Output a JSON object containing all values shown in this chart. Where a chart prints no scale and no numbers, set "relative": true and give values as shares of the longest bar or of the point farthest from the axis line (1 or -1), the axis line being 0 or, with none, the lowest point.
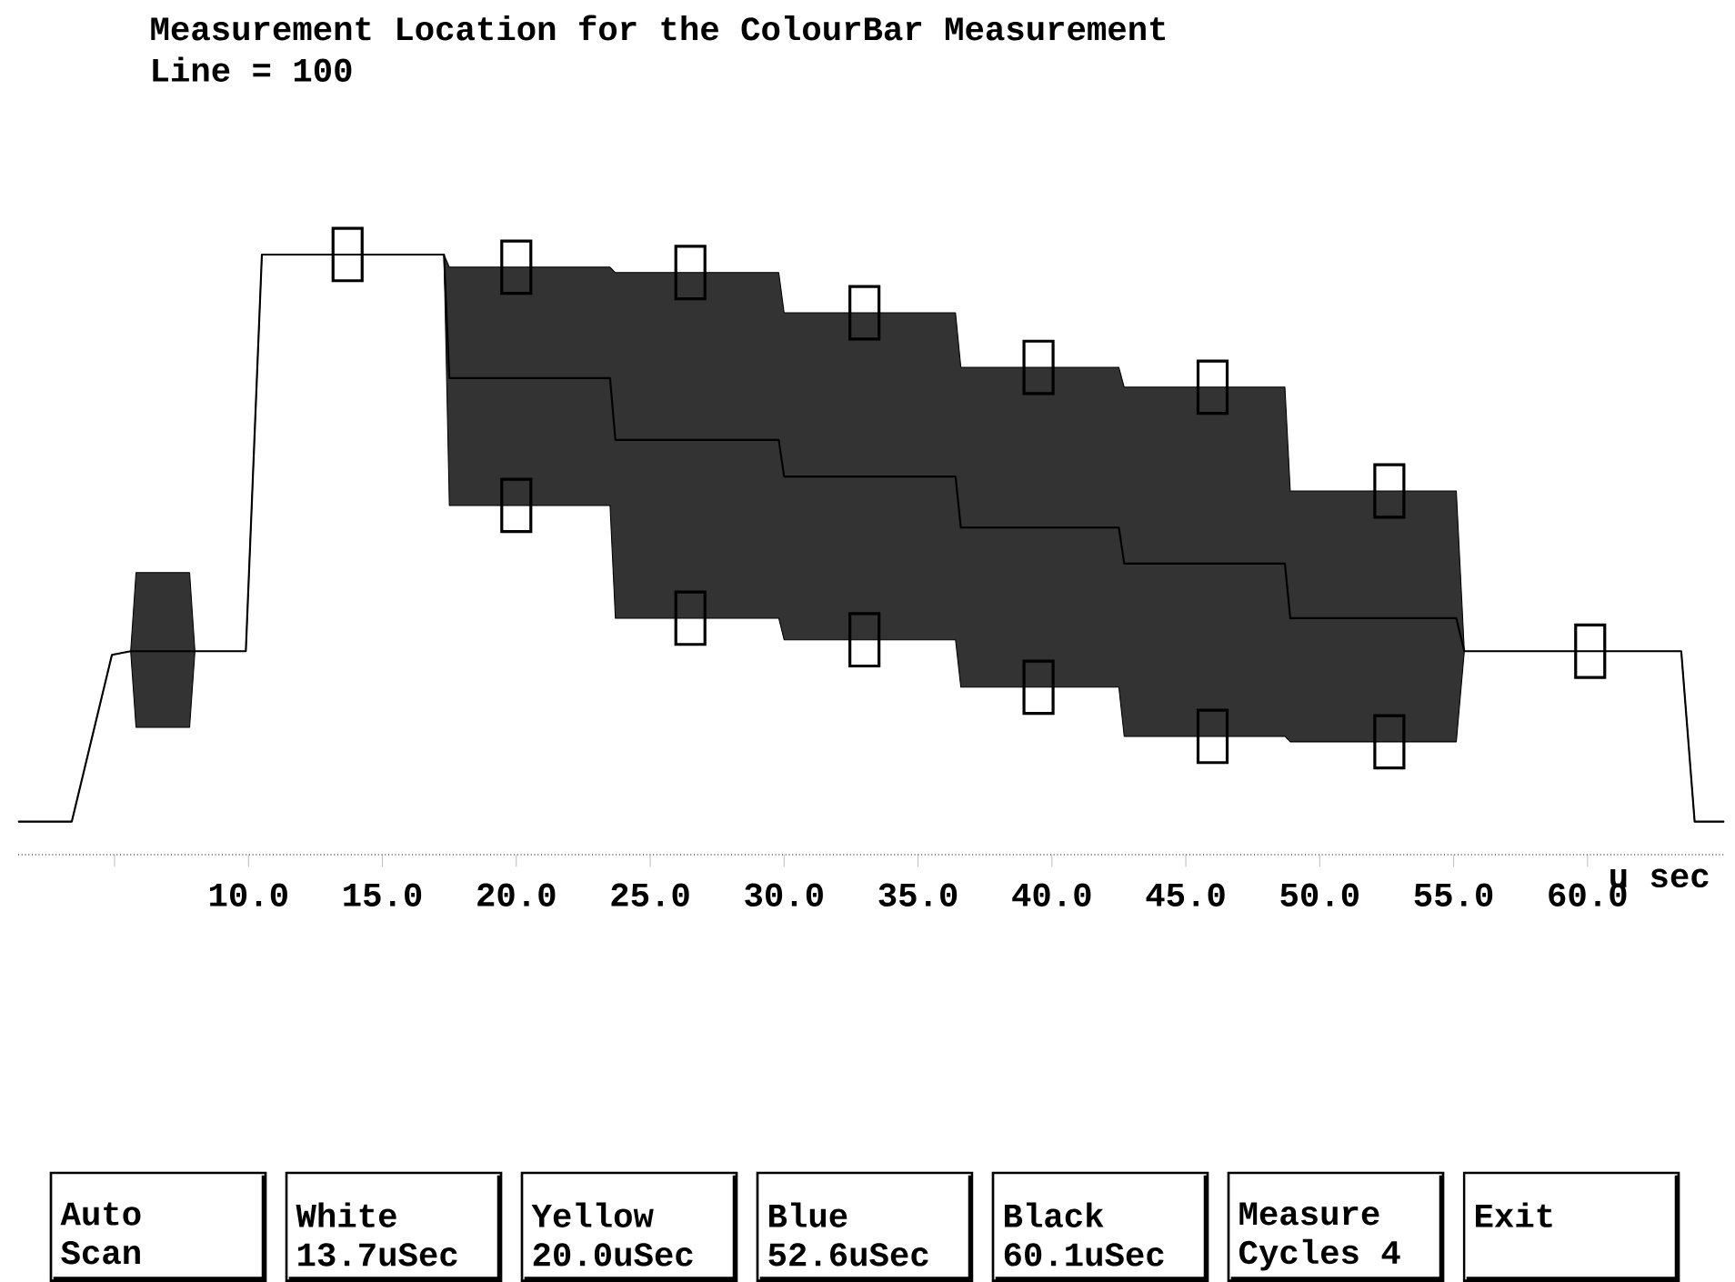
{
  "chart_data": {
    "type": "line",
    "title": "Measurement Location for the ColourBar Measurement",
    "subtitle": "Line = 100",
    "xlabel": "u sec",
    "relative": true,
    "xlim": [
      1.4,
      65.1
    ],
    "xticks": [
      {
        "value": 5,
        "label": null
      },
      {
        "value": 10,
        "label": "10.0"
      },
      {
        "value": 15,
        "label": "15.0"
      },
      {
        "value": 20,
        "label": "20.0"
      },
      {
        "value": 25,
        "label": "25.0"
      },
      {
        "value": 30,
        "label": "30.0"
      },
      {
        "value": 35,
        "label": "35.0"
      },
      {
        "value": 40,
        "label": "40.0"
      },
      {
        "value": 45,
        "label": "45.0"
      },
      {
        "value": 50,
        "label": "50.0"
      },
      {
        "value": 55,
        "label": "55.0"
      },
      {
        "value": 60,
        "label": "60.0"
      }
    ],
    "series": [
      {
        "color": "#000000",
        "x": [
          1.4,
          3.4,
          4.9,
          5.6,
          5.8,
          7.8,
          8.0,
          9.9,
          10.5,
          17.3,
          17.5,
          23.5,
          23.7,
          29.8,
          30.0,
          36.4,
          36.6,
          42.5,
          42.7,
          48.7,
          48.9,
          55.1,
          55.4,
          63.5,
          64.0,
          65.1
        ],
        "values": [
          0.055,
          0.055,
          0.333,
          0.339,
          0.339,
          0.339,
          0.339,
          0.339,
          1.0,
          1.0,
          0.794,
          0.794,
          0.691,
          0.691,
          0.63,
          0.63,
          0.545,
          0.545,
          0.485,
          0.485,
          0.394,
          0.394,
          0.339,
          0.339,
          0.055,
          0.055
        ],
        "lower": [
          0.055,
          0.055,
          0.333,
          0.339,
          0.212,
          0.212,
          0.339,
          0.339,
          1.0,
          1.0,
          0.582,
          0.582,
          0.394,
          0.394,
          0.358,
          0.358,
          0.279,
          0.279,
          0.197,
          0.197,
          0.188,
          0.188,
          0.339,
          0.339,
          0.055,
          0.055
        ],
        "upper": [
          0.055,
          0.055,
          0.333,
          0.339,
          0.47,
          0.47,
          0.339,
          0.339,
          1.0,
          1.0,
          0.979,
          0.979,
          0.97,
          0.97,
          0.903,
          0.903,
          0.812,
          0.812,
          0.779,
          0.779,
          0.606,
          0.606,
          0.339,
          0.339,
          0.055,
          0.055
        ]
      },
      {
        "type": "scatter",
        "marker": "square",
        "color": "#000000",
        "x": [
          13.7,
          20.0,
          20.0,
          26.5,
          26.5,
          33.0,
          33.0,
          39.5,
          39.5,
          46.0,
          46.0,
          52.6,
          52.6,
          60.1
        ],
        "values": [
          1.0,
          0.979,
          0.582,
          0.97,
          0.394,
          0.903,
          0.358,
          0.812,
          0.279,
          0.779,
          0.197,
          0.606,
          0.188,
          0.339
        ]
      }
    ],
    "annotations": [
      "Auto Scan",
      "White 13.7uSec",
      "Yellow 20.0uSec",
      "Blue 52.6uSec",
      "Black 60.1uSec",
      "Measure Cycles 4",
      "Exit"
    ]
  }
}
